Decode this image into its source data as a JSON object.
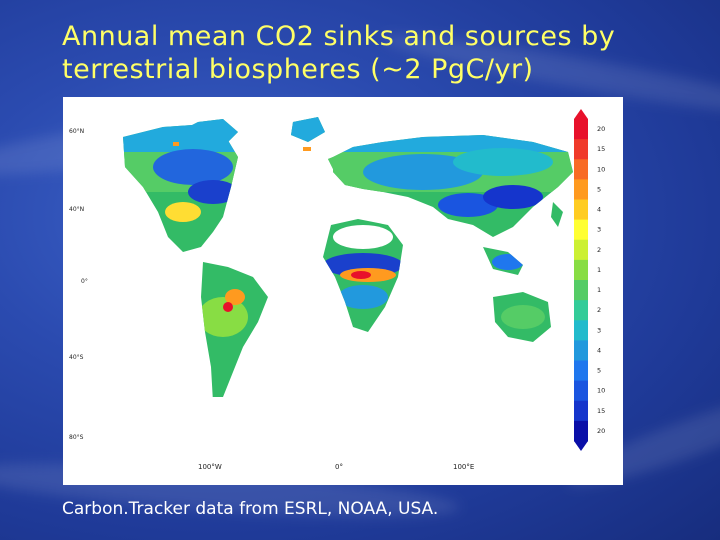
{
  "slide": {
    "title_line1": "Annual mean CO2 sinks and sources by",
    "title_line2": "terrestrial biospheres (~2 PgC/yr)",
    "caption": "Carbon.Tracker data from ESRL, NOAA, USA.",
    "title_color": "#ffff66",
    "background_color": "#2b4bb0"
  },
  "map": {
    "lat_labels": [
      "60°N",
      "40°N",
      "0°",
      "40°S",
      "80°S"
    ],
    "lon_labels": [
      "100°W",
      "0°",
      "100°E"
    ],
    "colorbar_labels": [
      "20",
      "15",
      "10",
      "5",
      "4",
      "3",
      "2",
      "1",
      "1",
      "2",
      "3",
      "4",
      "5",
      "10",
      "15",
      "20"
    ],
    "colorbar_colors": [
      "#e8112b",
      "#f03a2a",
      "#f86b25",
      "#ff9a1f",
      "#ffcc22",
      "#ffff33",
      "#ccf033",
      "#88dd44",
      "#55cc66",
      "#33cc99",
      "#22bbcc",
      "#2299dd",
      "#1f77ee",
      "#1a55e0",
      "#1535cc",
      "#0a0fa8"
    ]
  }
}
